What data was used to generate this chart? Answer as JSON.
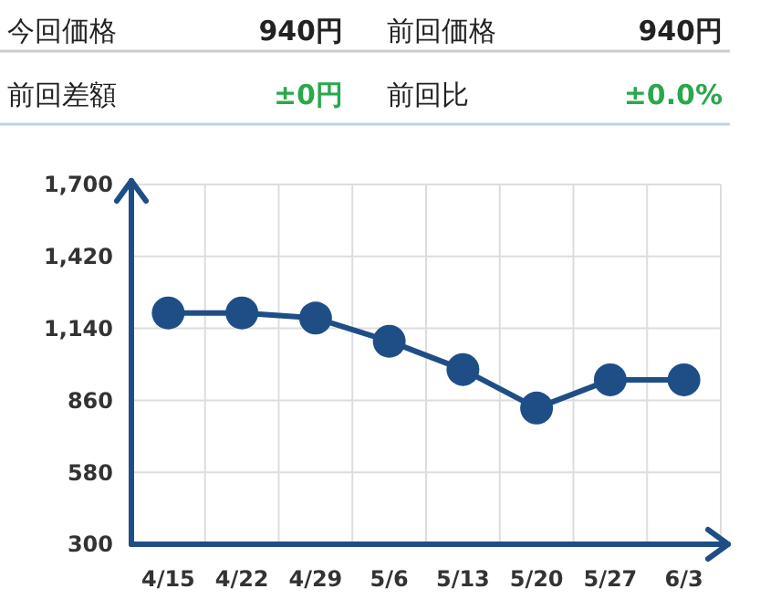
{
  "chart_data": {
    "type": "line",
    "annotations": [
      "今回価格",
      "940円",
      "前回価格",
      "940円",
      "前回差額",
      "±0円",
      "前回比",
      "±0.0%"
    ],
    "categories": [
      "4/15",
      "4/22",
      "4/29",
      "5/6",
      "5/13",
      "5/20",
      "5/27",
      "6/3"
    ],
    "series": [
      {
        "color": "#1f4e86",
        "values": [
          1200,
          1200,
          1180,
          1090,
          980,
          830,
          940,
          940
        ]
      }
    ],
    "ylim": [
      300,
      1700
    ],
    "yticks": [
      {
        "value": 300,
        "label": "300"
      },
      {
        "value": 580,
        "label": "580"
      },
      {
        "value": 860,
        "label": "860"
      },
      {
        "value": 1140,
        "label": "1,140"
      },
      {
        "value": 1420,
        "label": "1,420"
      },
      {
        "value": 1700,
        "label": "1,700"
      }
    ],
    "grid": true,
    "marker": "circle",
    "line_style": "solid"
  }
}
